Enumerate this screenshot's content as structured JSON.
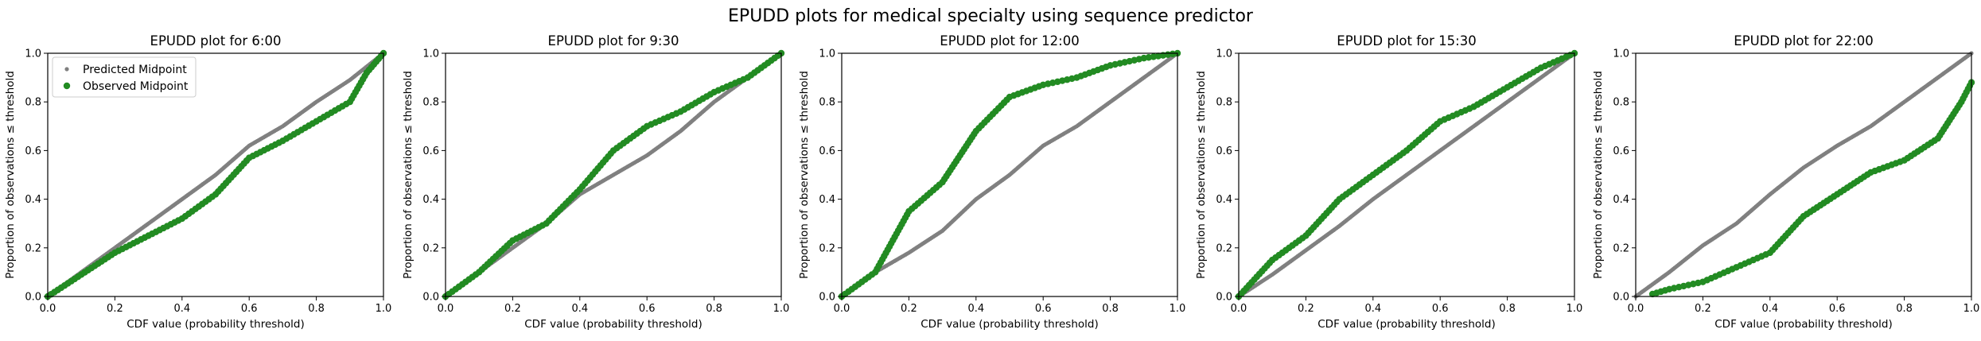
{
  "figure": {
    "suptitle": "EPUDD plots for medical specialty using sequence predictor"
  },
  "legend": {
    "entries": [
      {
        "label": "Predicted Midpoint",
        "color": "#808080",
        "marker": "small-circle"
      },
      {
        "label": "Observed Midpoint",
        "color": "#228b22",
        "marker": "circle"
      }
    ],
    "placement": "upper-left of first panel"
  },
  "colors": {
    "predicted": "#808080",
    "observed": "#228b22",
    "axes": "#000000",
    "background": "#ffffff"
  },
  "chart_data": [
    {
      "type": "scatter",
      "title": "EPUDD plot for 6:00",
      "xlabel": "CDF value (probability threshold)",
      "ylabel": "Proportion of observations ≤ threshold",
      "xlim": [
        0,
        1
      ],
      "ylim": [
        0,
        1
      ],
      "xticks": [
        "0.0",
        "0.2",
        "0.4",
        "0.6",
        "0.8",
        "1.0"
      ],
      "yticks": [
        "0.0",
        "0.2",
        "0.4",
        "0.6",
        "0.8",
        "1.0"
      ],
      "grid": false,
      "show_legend": true,
      "series": [
        {
          "name": "Predicted Midpoint",
          "points": [
            [
              0,
              0
            ],
            [
              0.1,
              0.1
            ],
            [
              0.2,
              0.2
            ],
            [
              0.3,
              0.3
            ],
            [
              0.4,
              0.4
            ],
            [
              0.5,
              0.5
            ],
            [
              0.6,
              0.62
            ],
            [
              0.7,
              0.7
            ],
            [
              0.8,
              0.8
            ],
            [
              0.9,
              0.89
            ],
            [
              1,
              1
            ]
          ]
        },
        {
          "name": "Observed Midpoint",
          "points": [
            [
              0,
              0
            ],
            [
              0.1,
              0.09
            ],
            [
              0.2,
              0.18
            ],
            [
              0.3,
              0.25
            ],
            [
              0.4,
              0.32
            ],
            [
              0.5,
              0.42
            ],
            [
              0.6,
              0.57
            ],
            [
              0.7,
              0.64
            ],
            [
              0.8,
              0.72
            ],
            [
              0.9,
              0.8
            ],
            [
              0.95,
              0.92
            ],
            [
              1,
              1
            ]
          ]
        }
      ]
    },
    {
      "type": "scatter",
      "title": "EPUDD plot for 9:30",
      "xlabel": "CDF value (probability threshold)",
      "ylabel": "Proportion of observations ≤ threshold",
      "xlim": [
        0,
        1
      ],
      "ylim": [
        0,
        1
      ],
      "xticks": [
        "0.0",
        "0.2",
        "0.4",
        "0.6",
        "0.8",
        "1.0"
      ],
      "yticks": [
        "0.0",
        "0.2",
        "0.4",
        "0.6",
        "0.8",
        "1.0"
      ],
      "grid": false,
      "show_legend": false,
      "series": [
        {
          "name": "Predicted Midpoint",
          "points": [
            [
              0,
              0
            ],
            [
              0.1,
              0.1
            ],
            [
              0.2,
              0.2
            ],
            [
              0.3,
              0.3
            ],
            [
              0.4,
              0.42
            ],
            [
              0.5,
              0.5
            ],
            [
              0.6,
              0.58
            ],
            [
              0.7,
              0.68
            ],
            [
              0.8,
              0.8
            ],
            [
              0.9,
              0.9
            ],
            [
              1,
              1
            ]
          ]
        },
        {
          "name": "Observed Midpoint",
          "points": [
            [
              0,
              0
            ],
            [
              0.1,
              0.1
            ],
            [
              0.2,
              0.23
            ],
            [
              0.3,
              0.3
            ],
            [
              0.4,
              0.44
            ],
            [
              0.5,
              0.6
            ],
            [
              0.6,
              0.7
            ],
            [
              0.7,
              0.76
            ],
            [
              0.8,
              0.84
            ],
            [
              0.9,
              0.9
            ],
            [
              1,
              1
            ]
          ]
        }
      ]
    },
    {
      "type": "scatter",
      "title": "EPUDD plot for 12:00",
      "xlabel": "CDF value (probability threshold)",
      "ylabel": "Proportion of observations ≤ threshold",
      "xlim": [
        0,
        1
      ],
      "ylim": [
        0,
        1
      ],
      "xticks": [
        "0.0",
        "0.2",
        "0.4",
        "0.6",
        "0.8",
        "1.0"
      ],
      "yticks": [
        "0.0",
        "0.2",
        "0.4",
        "0.6",
        "0.8",
        "1.0"
      ],
      "grid": false,
      "show_legend": false,
      "series": [
        {
          "name": "Predicted Midpoint",
          "points": [
            [
              0,
              0
            ],
            [
              0.1,
              0.1
            ],
            [
              0.2,
              0.18
            ],
            [
              0.3,
              0.27
            ],
            [
              0.4,
              0.4
            ],
            [
              0.5,
              0.5
            ],
            [
              0.6,
              0.62
            ],
            [
              0.7,
              0.7
            ],
            [
              0.8,
              0.8
            ],
            [
              0.9,
              0.9
            ],
            [
              1,
              1
            ]
          ]
        },
        {
          "name": "Observed Midpoint",
          "points": [
            [
              0,
              0
            ],
            [
              0.1,
              0.1
            ],
            [
              0.2,
              0.35
            ],
            [
              0.3,
              0.47
            ],
            [
              0.4,
              0.68
            ],
            [
              0.5,
              0.82
            ],
            [
              0.6,
              0.87
            ],
            [
              0.7,
              0.9
            ],
            [
              0.8,
              0.95
            ],
            [
              0.9,
              0.98
            ],
            [
              1,
              1
            ]
          ]
        }
      ]
    },
    {
      "type": "scatter",
      "title": "EPUDD plot for 15:30",
      "xlabel": "CDF value (probability threshold)",
      "ylabel": "Proportion of observations ≤ threshold",
      "xlim": [
        0,
        1
      ],
      "ylim": [
        0,
        1
      ],
      "xticks": [
        "0.0",
        "0.2",
        "0.4",
        "0.6",
        "0.8",
        "1.0"
      ],
      "yticks": [
        "0.0",
        "0.2",
        "0.4",
        "0.6",
        "0.8",
        "1.0"
      ],
      "grid": false,
      "show_legend": false,
      "series": [
        {
          "name": "Predicted Midpoint",
          "points": [
            [
              0,
              0
            ],
            [
              0.1,
              0.09
            ],
            [
              0.2,
              0.19
            ],
            [
              0.3,
              0.29
            ],
            [
              0.4,
              0.4
            ],
            [
              0.5,
              0.5
            ],
            [
              0.6,
              0.6
            ],
            [
              0.7,
              0.7
            ],
            [
              0.8,
              0.8
            ],
            [
              0.9,
              0.9
            ],
            [
              1,
              1
            ]
          ]
        },
        {
          "name": "Observed Midpoint",
          "points": [
            [
              0,
              0
            ],
            [
              0.1,
              0.15
            ],
            [
              0.2,
              0.25
            ],
            [
              0.3,
              0.4
            ],
            [
              0.4,
              0.5
            ],
            [
              0.5,
              0.6
            ],
            [
              0.6,
              0.72
            ],
            [
              0.7,
              0.78
            ],
            [
              0.8,
              0.86
            ],
            [
              0.9,
              0.94
            ],
            [
              1,
              1
            ]
          ]
        }
      ]
    },
    {
      "type": "scatter",
      "title": "EPUDD plot for 22:00",
      "xlabel": "CDF value (probability threshold)",
      "ylabel": "Proportion of observations ≤ threshold",
      "xlim": [
        0,
        1
      ],
      "ylim": [
        0,
        1
      ],
      "xticks": [
        "0.0",
        "0.2",
        "0.4",
        "0.6",
        "0.8",
        "1.0"
      ],
      "yticks": [
        "0.0",
        "0.2",
        "0.4",
        "0.6",
        "0.8",
        "1.0"
      ],
      "grid": false,
      "show_legend": false,
      "series": [
        {
          "name": "Predicted Midpoint",
          "points": [
            [
              0,
              0
            ],
            [
              0.1,
              0.1
            ],
            [
              0.2,
              0.21
            ],
            [
              0.3,
              0.3
            ],
            [
              0.4,
              0.42
            ],
            [
              0.5,
              0.53
            ],
            [
              0.6,
              0.62
            ],
            [
              0.7,
              0.7
            ],
            [
              0.8,
              0.8
            ],
            [
              0.9,
              0.9
            ],
            [
              1,
              1
            ]
          ]
        },
        {
          "name": "Observed Midpoint",
          "points": [
            [
              0.05,
              0.01
            ],
            [
              0.1,
              0.03
            ],
            [
              0.2,
              0.06
            ],
            [
              0.3,
              0.12
            ],
            [
              0.4,
              0.18
            ],
            [
              0.5,
              0.33
            ],
            [
              0.6,
              0.42
            ],
            [
              0.7,
              0.51
            ],
            [
              0.8,
              0.56
            ],
            [
              0.9,
              0.65
            ],
            [
              0.97,
              0.8
            ],
            [
              1,
              0.88
            ]
          ]
        }
      ]
    }
  ]
}
